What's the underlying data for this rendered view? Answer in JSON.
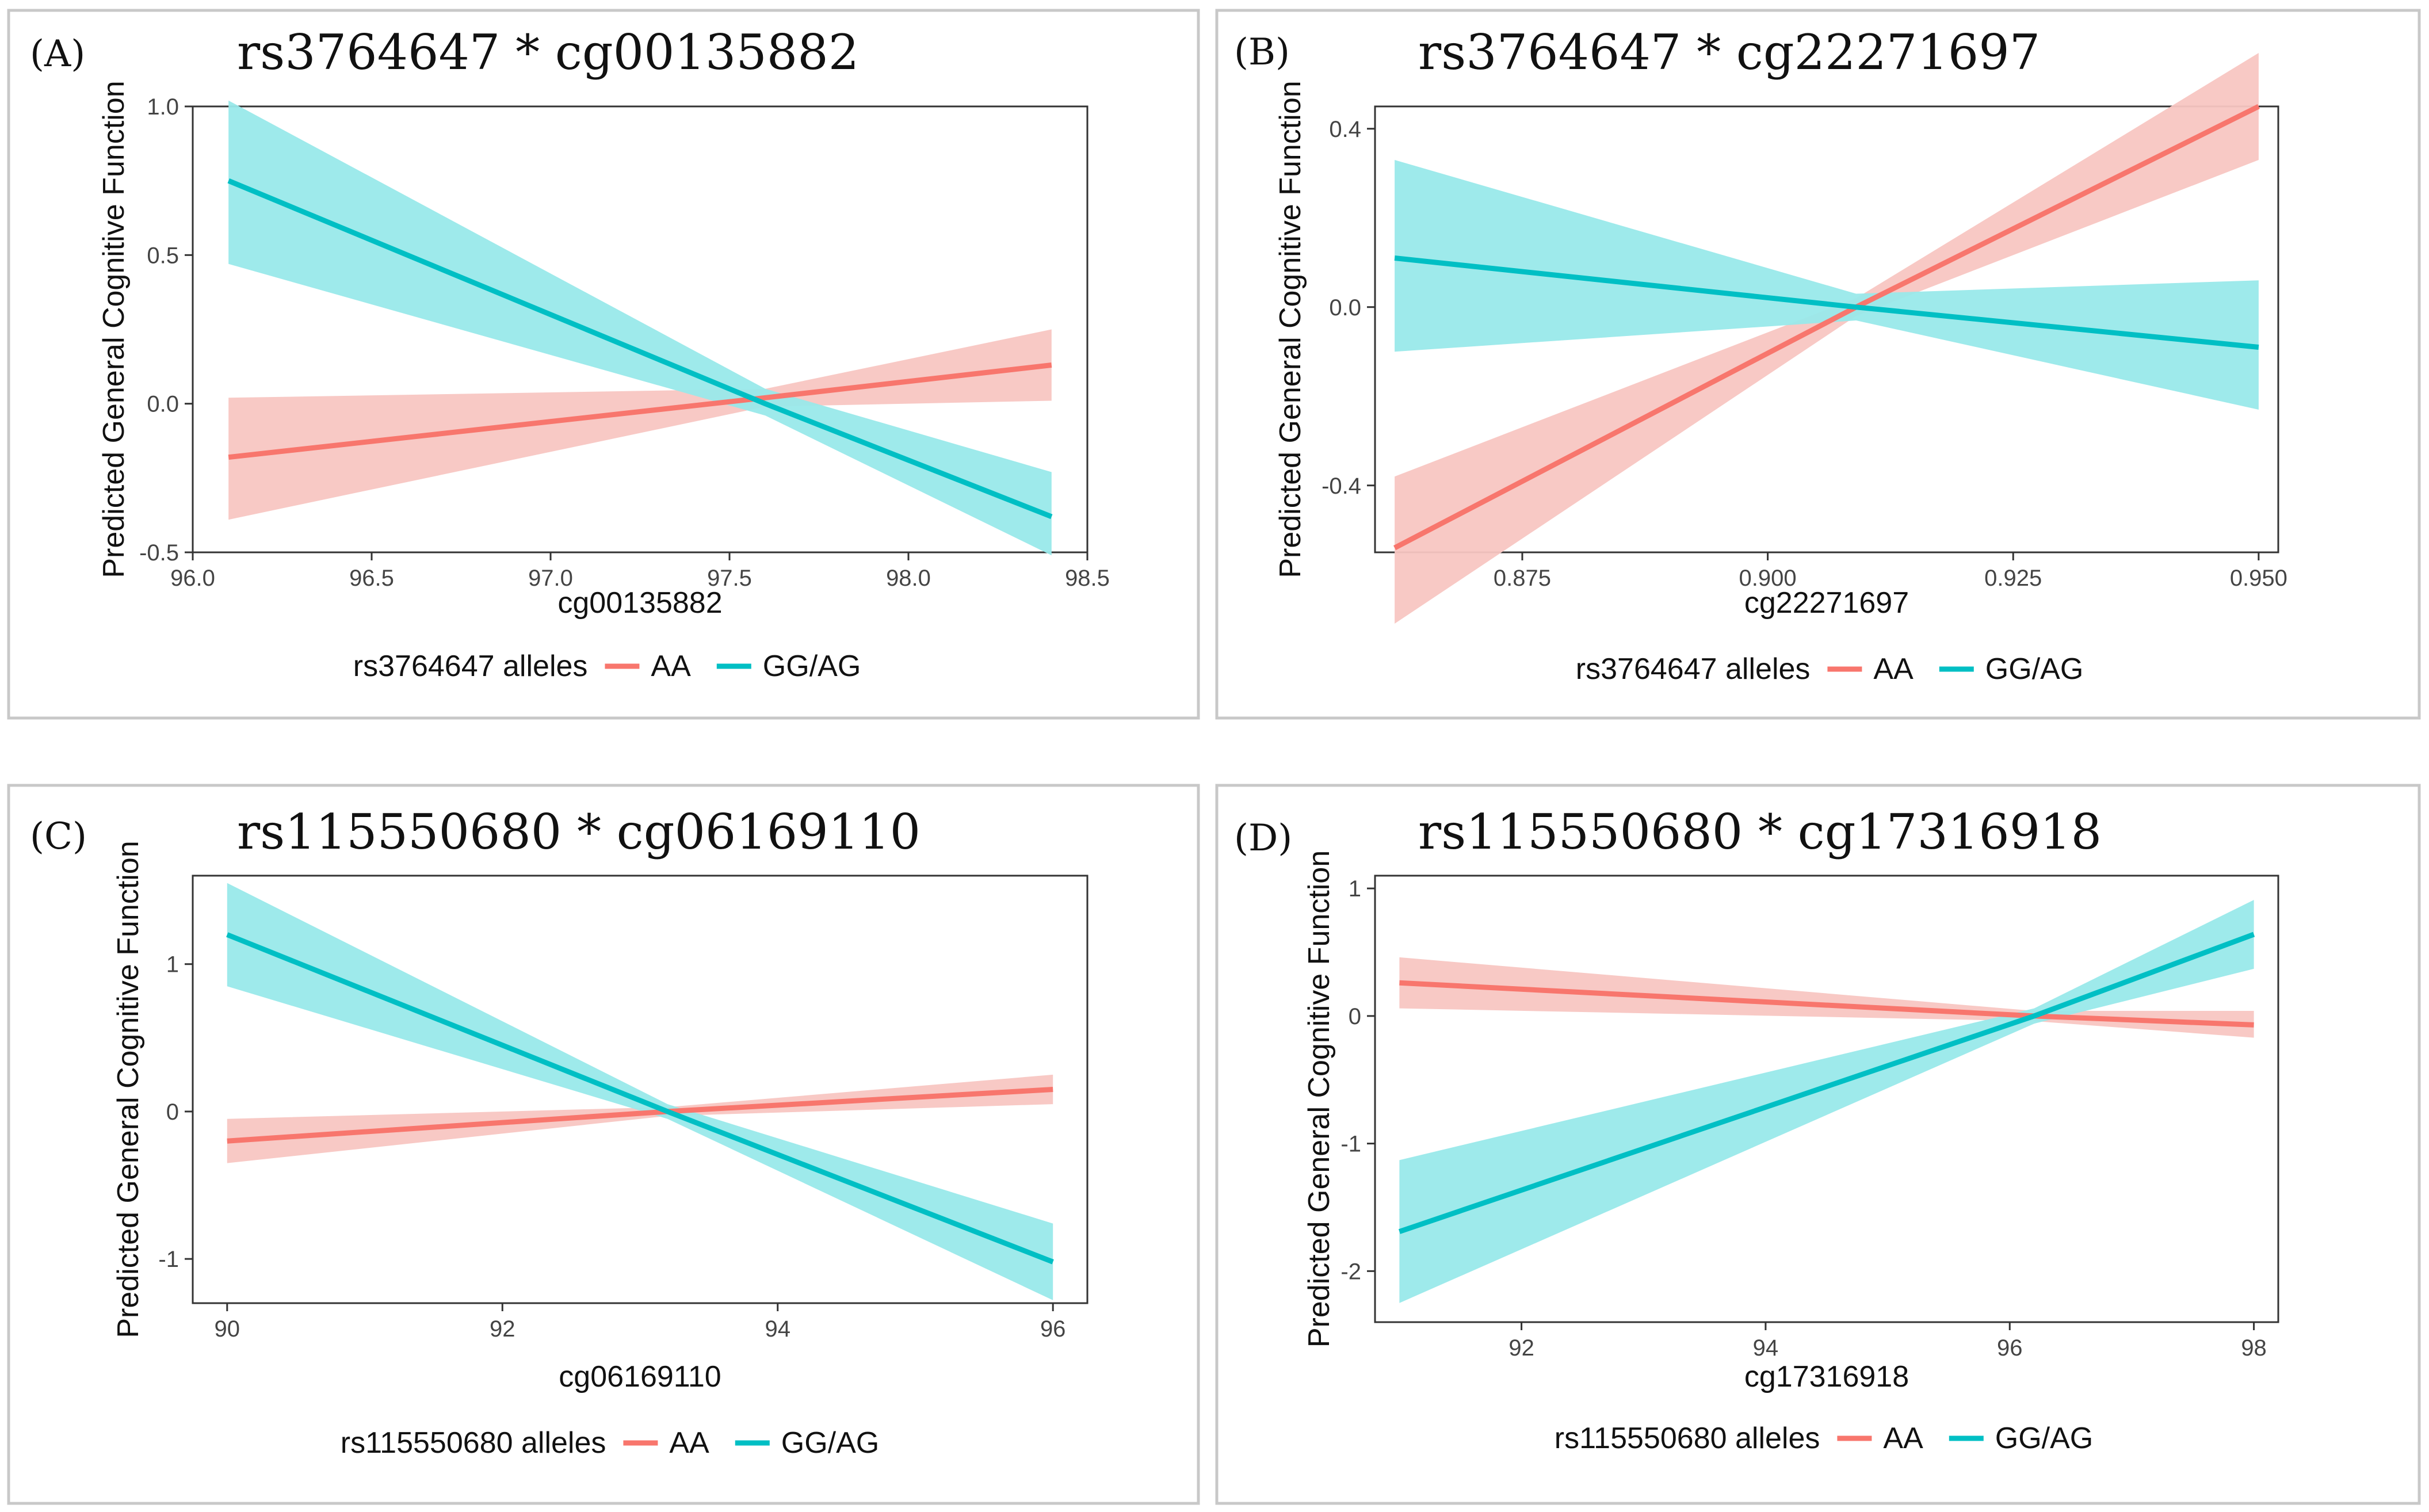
{
  "chart_data": [
    {
      "type": "line",
      "panel_label": "(A)",
      "title": "rs3764647 * cg00135882",
      "xlabel": "cg00135882",
      "ylabel": "Predicted General Cognitive Function",
      "xlim": [
        96.0,
        98.5
      ],
      "ylim": [
        -0.5,
        1.0
      ],
      "xticks": [
        96.0,
        96.5,
        97.0,
        97.5,
        98.0,
        98.5
      ],
      "xtick_labels": [
        "96.0",
        "96.5",
        "97.0",
        "97.5",
        "98.0",
        "98.5"
      ],
      "yticks": [
        -0.5,
        0.0,
        0.5,
        1.0
      ],
      "ytick_labels": [
        "-0.5",
        "0.0",
        "0.5",
        "1.0"
      ],
      "legend": {
        "title": "rs3764647 alleles",
        "position": "bottom"
      },
      "series": [
        {
          "name": "AA",
          "color": "#F8766D",
          "fill": "#F8C6C2",
          "x": [
            96.1,
            97.6,
            98.4
          ],
          "y": [
            -0.18,
            0.02,
            0.13
          ],
          "lower": [
            -0.39,
            -0.01,
            0.01
          ],
          "upper": [
            0.02,
            0.05,
            0.25
          ]
        },
        {
          "name": "GG/AG",
          "color": "#00BFC4",
          "fill": "#99E9EA",
          "x": [
            96.1,
            97.6,
            98.4
          ],
          "y": [
            0.75,
            0.0,
            -0.38
          ],
          "lower": [
            0.47,
            -0.04,
            -0.51
          ],
          "upper": [
            1.02,
            0.05,
            -0.23
          ]
        }
      ]
    },
    {
      "type": "line",
      "panel_label": "(B)",
      "title": "rs3764647 * cg22271697",
      "xlabel": "cg22271697",
      "ylabel": "Predicted General Cognitive Function",
      "xlim": [
        0.86,
        0.952
      ],
      "ylim": [
        -0.55,
        0.45
      ],
      "xticks": [
        0.875,
        0.9,
        0.925,
        0.95
      ],
      "xtick_labels": [
        "0.875",
        "0.900",
        "0.925",
        "0.950"
      ],
      "yticks": [
        -0.4,
        0.0,
        0.4
      ],
      "ytick_labels": [
        "-0.4",
        "0.0",
        "0.4"
      ],
      "legend": {
        "title": "rs3764647 alleles",
        "position": "bottom"
      },
      "series": [
        {
          "name": "AA",
          "color": "#F8766D",
          "fill": "#F8C6C2",
          "x": [
            0.862,
            0.909,
            0.95
          ],
          "y": [
            -0.54,
            0.0,
            0.45
          ],
          "lower": [
            -0.71,
            -0.02,
            0.33
          ],
          "upper": [
            -0.38,
            0.02,
            0.57
          ]
        },
        {
          "name": "GG/AG",
          "color": "#00BFC4",
          "fill": "#99E9EA",
          "x": [
            0.862,
            0.909,
            0.95
          ],
          "y": [
            0.11,
            0.0,
            -0.09
          ],
          "lower": [
            -0.1,
            -0.03,
            -0.23
          ],
          "upper": [
            0.33,
            0.03,
            0.06
          ]
        }
      ]
    },
    {
      "type": "line",
      "panel_label": "(C)",
      "title": "rs115550680 * cg06169110",
      "xlabel": "cg06169110",
      "ylabel": "Predicted General Cognitive Function",
      "xlim": [
        89.75,
        96.25
      ],
      "ylim": [
        -1.3,
        1.6
      ],
      "xticks": [
        90,
        92,
        94,
        96
      ],
      "xtick_labels": [
        "90",
        "92",
        "94",
        "96"
      ],
      "yticks": [
        -1,
        0,
        1
      ],
      "ytick_labels": [
        "-1",
        "0",
        "1"
      ],
      "legend": {
        "title": "rs115550680 alleles",
        "position": "bottom"
      },
      "series": [
        {
          "name": "AA",
          "color": "#F8766D",
          "fill": "#F8C6C2",
          "x": [
            90,
            93.2,
            96
          ],
          "y": [
            -0.2,
            0.0,
            0.15
          ],
          "lower": [
            -0.35,
            -0.03,
            0.05
          ],
          "upper": [
            -0.05,
            0.03,
            0.25
          ]
        },
        {
          "name": "GG/AG",
          "color": "#00BFC4",
          "fill": "#99E9EA",
          "x": [
            90,
            93.2,
            96
          ],
          "y": [
            1.2,
            0.0,
            -1.02
          ],
          "lower": [
            0.85,
            -0.05,
            -1.28
          ],
          "upper": [
            1.55,
            0.05,
            -0.76
          ]
        }
      ]
    },
    {
      "type": "line",
      "panel_label": "(D)",
      "title": "rs115550680 * cg17316918",
      "xlabel": "cg17316918",
      "ylabel": "Predicted General Cognitive Function",
      "xlim": [
        90.8,
        98.2
      ],
      "ylim": [
        -2.4,
        1.1
      ],
      "xticks": [
        92,
        94,
        96,
        98
      ],
      "xtick_labels": [
        "92",
        "94",
        "96",
        "98"
      ],
      "yticks": [
        -2,
        -1,
        0,
        1
      ],
      "ytick_labels": [
        "-2",
        "-1",
        "0",
        "1"
      ],
      "legend": {
        "title": "rs115550680 alleles",
        "position": "bottom"
      },
      "series": [
        {
          "name": "AA",
          "color": "#F8766D",
          "fill": "#F8C6C2",
          "x": [
            91,
            96.2,
            98
          ],
          "y": [
            0.26,
            0.0,
            -0.07
          ],
          "lower": [
            0.06,
            -0.04,
            -0.17
          ],
          "upper": [
            0.46,
            0.04,
            0.04
          ]
        },
        {
          "name": "GG/AG",
          "color": "#00BFC4",
          "fill": "#99E9EA",
          "x": [
            91,
            96.2,
            98
          ],
          "y": [
            -1.69,
            0.0,
            0.64
          ],
          "lower": [
            -2.25,
            -0.06,
            0.37
          ],
          "upper": [
            -1.13,
            0.06,
            0.91
          ]
        }
      ]
    }
  ]
}
